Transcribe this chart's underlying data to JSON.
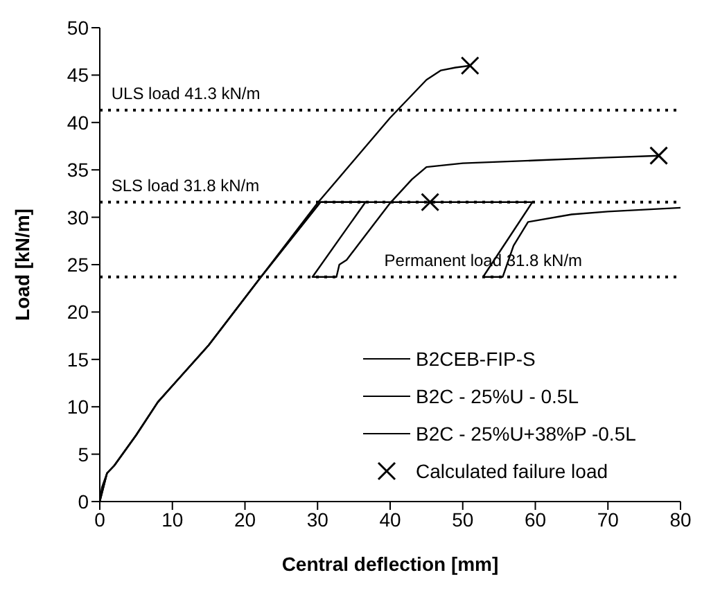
{
  "chart_data": {
    "type": "line",
    "xlabel": "Central deflection [mm]",
    "ylabel": "Load [kN/m]",
    "xlim": [
      0,
      80
    ],
    "xticks": [
      0,
      10,
      20,
      30,
      40,
      50,
      60,
      70,
      80
    ],
    "ylim": [
      0,
      50
    ],
    "yticks": [
      0,
      5,
      10,
      15,
      20,
      25,
      30,
      35,
      40,
      45,
      50
    ],
    "grid": false,
    "legend": "bottom right",
    "line_style": "solid",
    "marker": "none",
    "series": [
      {
        "name": "B2CEB-FIP-S",
        "color": "#000000",
        "x": [
          0,
          0.3,
          1,
          2,
          5,
          8,
          15,
          22,
          30,
          35,
          40,
          45,
          47,
          49,
          51
        ],
        "values": [
          0,
          1.5,
          3,
          3.8,
          7,
          10.5,
          16.5,
          23.5,
          31.5,
          36,
          40.5,
          44.5,
          45.5,
          45.8,
          46
        ]
      },
      {
        "name": "B2C - 25%U - 0.5L",
        "color": "#000000",
        "x": [
          0,
          1,
          2,
          5,
          8,
          15,
          22,
          30.4,
          36.6,
          29.3,
          32.6,
          33,
          34,
          36,
          40,
          43,
          45,
          50,
          60,
          70,
          77
        ],
        "values": [
          0,
          3,
          3.8,
          7,
          10.5,
          16.5,
          23.5,
          31.6,
          31.6,
          23.7,
          23.7,
          25,
          25.5,
          27.5,
          31.5,
          34,
          35.3,
          35.7,
          36,
          36.3,
          36.5
        ]
      },
      {
        "name": "B2C - 25%U+38%P -0.5L",
        "color": "#000000",
        "x": [
          0,
          1,
          2,
          5,
          8,
          15,
          22,
          30.4,
          59.6,
          52.8,
          55.5,
          57,
          59,
          65,
          70,
          80
        ],
        "values": [
          0,
          3,
          3.8,
          7,
          10.5,
          16.5,
          23.5,
          31.6,
          31.6,
          23.7,
          23.7,
          27,
          29.5,
          30.3,
          30.6,
          31
        ]
      },
      {
        "name": "Calculated failure load",
        "type": "scatter",
        "marker": "cross",
        "color": "#000000",
        "x": [
          51,
          77,
          45.5
        ],
        "values": [
          46,
          36.5,
          31.6
        ]
      }
    ],
    "ref_lines": [
      {
        "axis": "y",
        "value": 41.3,
        "label": "ULS load 41.3 kN/m",
        "line_style": "dotted",
        "color": "#000000"
      },
      {
        "axis": "y",
        "value": 31.6,
        "label": "SLS load 31.8 kN/m",
        "line_style": "dotted",
        "color": "#000000"
      },
      {
        "axis": "y",
        "value": 23.7,
        "label": "Permanent load 31.8  kN/m",
        "line_style": "dotted",
        "color": "#000000"
      }
    ]
  }
}
